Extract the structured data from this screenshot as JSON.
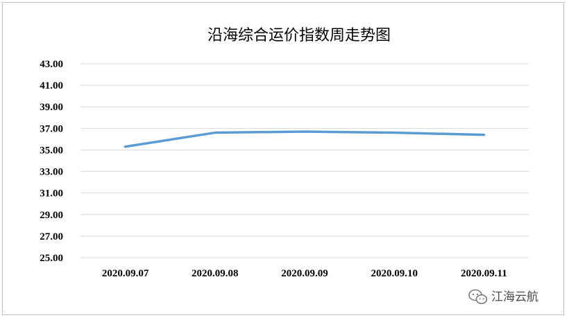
{
  "chart_data": {
    "type": "line",
    "title": "沿海综合运价指数周走势图",
    "xlabel": "",
    "ylabel": "",
    "categories": [
      "2020.09.07",
      "2020.09.08",
      "2020.09.09",
      "2020.09.10",
      "2020.09.11"
    ],
    "series": [
      {
        "values": [
          35.3,
          36.6,
          36.7,
          36.6,
          36.4
        ]
      }
    ],
    "ylim": [
      25.0,
      43.0
    ],
    "yticks": [
      "43.00",
      "41.00",
      "39.00",
      "37.00",
      "35.00",
      "33.00",
      "31.00",
      "29.00",
      "27.00",
      "25.00"
    ],
    "grid": true,
    "legend": "none",
    "line_color": "#5b9bd5",
    "grid_color": "#d9d9d9"
  },
  "watermark": {
    "text": "江海云航",
    "icon": "wechat-icon"
  }
}
